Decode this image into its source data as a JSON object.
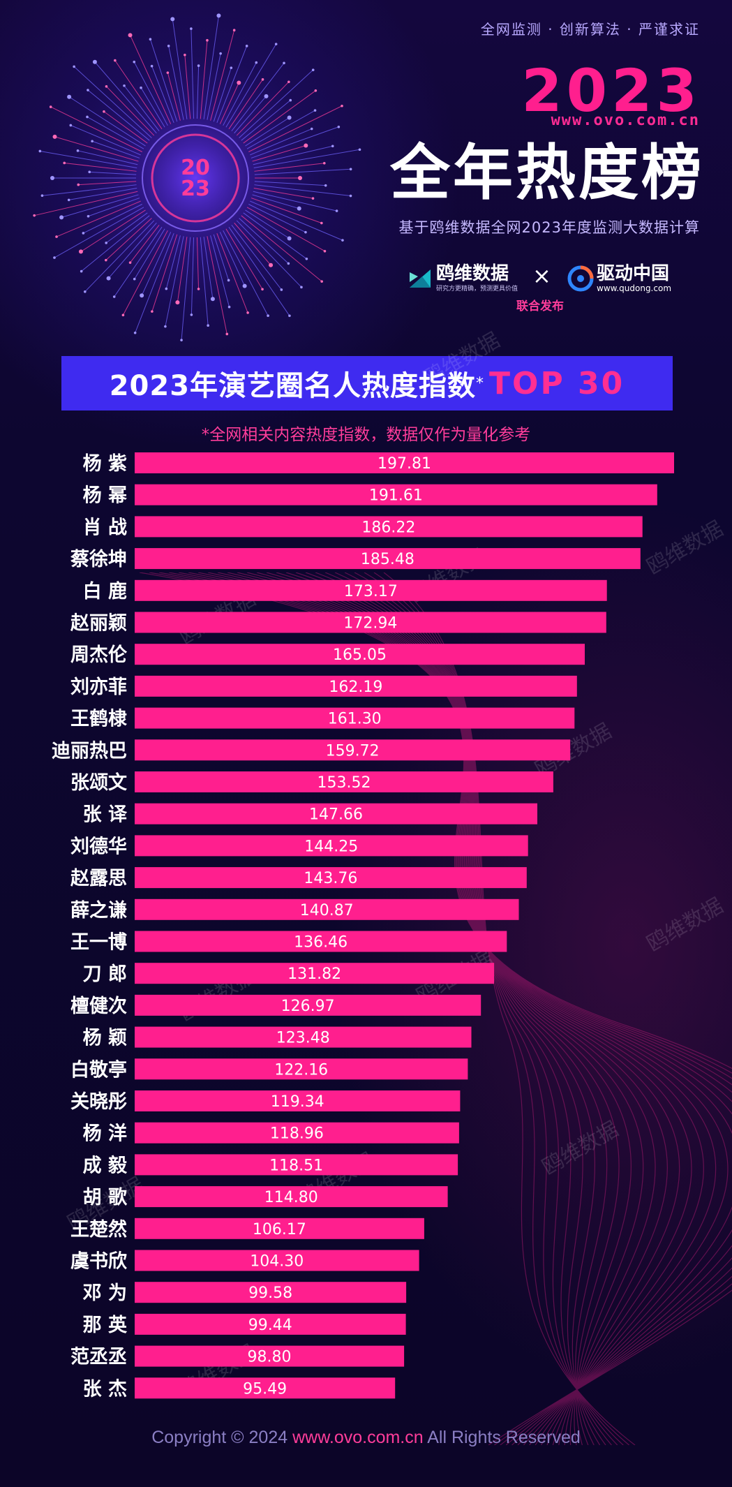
{
  "header": {
    "tagline": "全网监测 · 创新算法 · 严谨求证",
    "year": "2023",
    "site": "www.ovo.com.cn",
    "title": "全年热度榜",
    "subtitle": "基于鸥维数据全网2023年度监测大数据计算",
    "emblem_top": "20",
    "emblem_bottom": "23"
  },
  "logos": {
    "ovo_name": "鸥维数据",
    "ovo_slogan": "研究方更精确，预测更具价值",
    "times": "×",
    "qudong_name": "驱动中国",
    "qudong_url": "www.qudong.com",
    "joint_release": "联合发布"
  },
  "banner": {
    "text": "2023年演艺圈名人热度指数",
    "star": "*",
    "top": "TOP 30"
  },
  "note": "*全网相关内容热度指数，数据仅作为量化参考",
  "watermark": "鸥维数据",
  "footer": {
    "copyright": "Copyright © 2024 ",
    "url": "www.ovo.com.cn",
    "rights": " All Rights Reserved"
  },
  "colors": {
    "bar": "#ff1f8e",
    "banner": "#3f2bf0",
    "background": "#0d0630",
    "accent": "#ff3d9a"
  },
  "chart_data": {
    "type": "bar",
    "orientation": "horizontal",
    "title": "2023年演艺圈名人热度指数 TOP 30",
    "categories": [
      "杨 紫",
      "杨 幂",
      "肖 战",
      "蔡徐坤",
      "白 鹿",
      "赵丽颖",
      "周杰伦",
      "刘亦菲",
      "王鹤棣",
      "迪丽热巴",
      "张颂文",
      "张 译",
      "刘德华",
      "赵露思",
      "薛之谦",
      "王一博",
      "刀 郎",
      "檀健次",
      "杨 颖",
      "白敬亭",
      "关晓彤",
      "杨 洋",
      "成 毅",
      "胡 歌",
      "王楚然",
      "虞书欣",
      "邓 为",
      "那 英",
      "范丞丞",
      "张 杰"
    ],
    "values": [
      197.81,
      191.61,
      186.22,
      185.48,
      173.17,
      172.94,
      165.05,
      162.19,
      161.3,
      159.72,
      153.52,
      147.66,
      144.25,
      143.76,
      140.87,
      136.46,
      131.82,
      126.97,
      123.48,
      122.16,
      119.34,
      118.96,
      118.51,
      114.8,
      106.17,
      104.3,
      99.58,
      99.44,
      98.8,
      95.49
    ],
    "labels": [
      "197.81",
      "191.61",
      "186.22",
      "185.48",
      "173.17",
      "172.94",
      "165.05",
      "162.19",
      "161.30",
      "159.72",
      "153.52",
      "147.66",
      "144.25",
      "143.76",
      "140.87",
      "136.46",
      "131.82",
      "126.97",
      "123.48",
      "122.16",
      "119.34",
      "118.96",
      "118.51",
      "114.80",
      "106.17",
      "104.30",
      "99.58",
      "99.44",
      "98.80",
      "95.49"
    ],
    "xlim": [
      0,
      200
    ],
    "grid": false,
    "legend": "none"
  }
}
